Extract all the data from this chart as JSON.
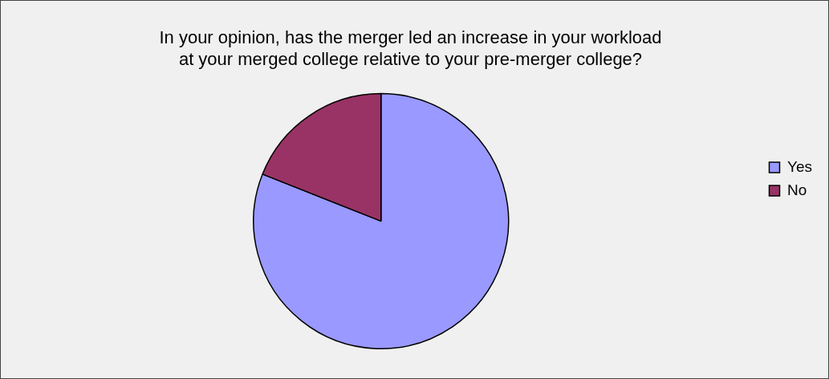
{
  "chart_data": {
    "type": "pie",
    "title": "In your opinion, has the merger led an increase in your workload\nat your merged college relative to your pre-merger college?",
    "categories": [
      "Yes",
      "No"
    ],
    "values": [
      81,
      19
    ],
    "colors": [
      "#9999ff",
      "#993366"
    ],
    "legend": "right"
  }
}
